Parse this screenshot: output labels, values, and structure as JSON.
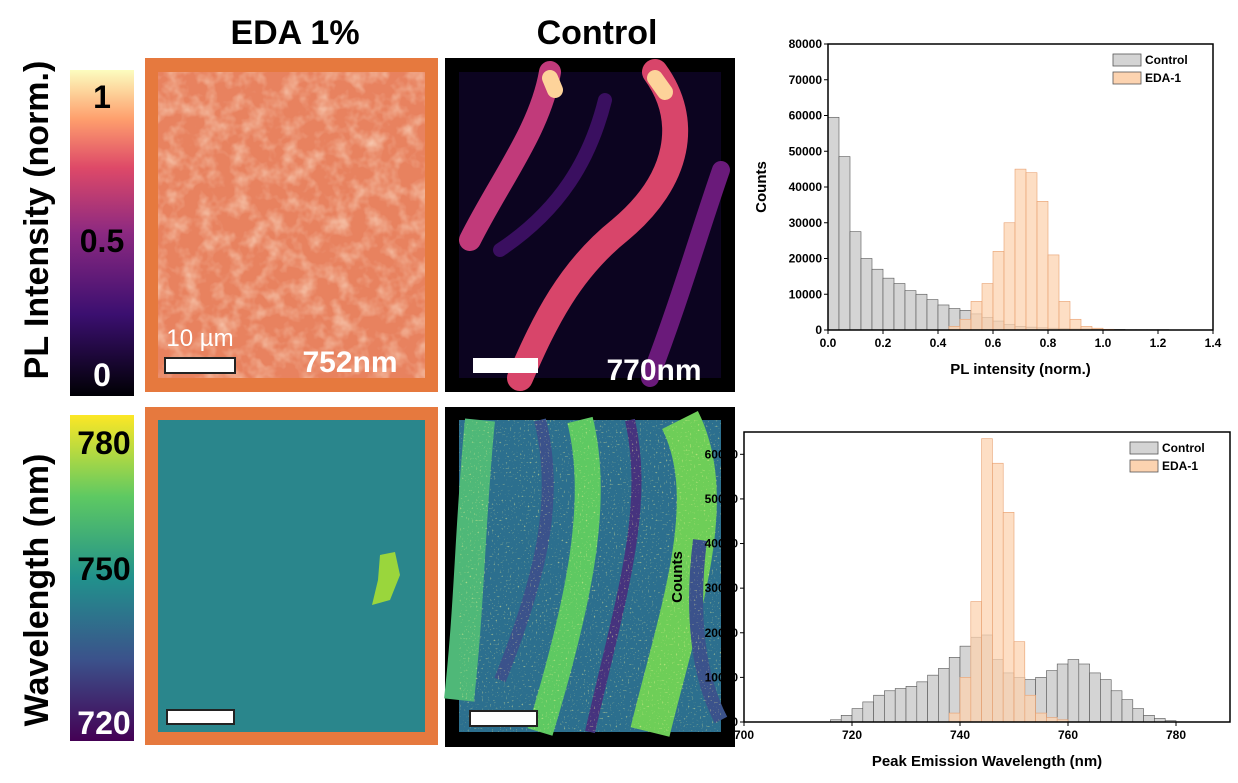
{
  "figure": {
    "columns": [
      "EDA 1%",
      "Control"
    ],
    "row_labels": [
      "PL Intensity (norm.)",
      "Wavelength (nm)"
    ],
    "colorbars": [
      {
        "ticks": [
          "1",
          "0.5",
          "0"
        ]
      },
      {
        "ticks": [
          "780",
          "750",
          "720"
        ]
      }
    ],
    "scale_bar": "10 µm",
    "peak_labels": [
      "752nm",
      "770nm"
    ]
  },
  "chart_data": [
    {
      "type": "histogram",
      "x_label": "PL intensity (norm.)",
      "y_label": "Counts",
      "bins": [
        0,
        0.04,
        0.08,
        0.12,
        0.16,
        0.2,
        0.24,
        0.28,
        0.32,
        0.36,
        0.4,
        0.44,
        0.48,
        0.52,
        0.56,
        0.6,
        0.64,
        0.68,
        0.72,
        0.76,
        0.8,
        0.84,
        0.88,
        0.92,
        0.96,
        1.0,
        1.04,
        1.08,
        1.12,
        1.16,
        1.2,
        1.24,
        1.28
      ],
      "series": [
        {
          "name": "Control",
          "color": "#d4d4d4",
          "values": [
            59500,
            48500,
            27500,
            20000,
            17000,
            14500,
            13000,
            11000,
            10000,
            8500,
            7000,
            6000,
            5500,
            4500,
            3500,
            2500,
            1500,
            1000,
            800,
            600,
            500,
            400,
            300,
            300,
            200,
            200,
            150,
            100,
            100,
            100,
            100,
            50
          ]
        },
        {
          "name": "EDA-1",
          "color": "#fcd3b0",
          "values": [
            0,
            0,
            0,
            0,
            0,
            0,
            0,
            0,
            0,
            0,
            0,
            1000,
            3000,
            8000,
            13000,
            22000,
            30000,
            45000,
            44000,
            36000,
            21000,
            8000,
            3000,
            1000,
            500,
            200,
            0,
            0,
            0,
            0,
            0,
            0
          ]
        }
      ],
      "xlim": [
        0,
        1.4
      ],
      "xticks": [
        {
          "value": 0,
          "label": "0.0"
        },
        0.2,
        0.4,
        0.6,
        0.8,
        {
          "value": 1,
          "label": "1.0"
        },
        1.2,
        1.4
      ],
      "ylim": [
        0,
        80000
      ],
      "yticks": [
        0,
        10000,
        20000,
        30000,
        40000,
        50000,
        60000,
        70000,
        80000
      ],
      "legend": "upper right"
    },
    {
      "type": "histogram",
      "x_label": "Peak Emission Wavelength (nm)",
      "y_label": "Counts",
      "bins": [
        716,
        718,
        720,
        722,
        724,
        726,
        728,
        730,
        732,
        734,
        736,
        738,
        740,
        742,
        744,
        746,
        748,
        750,
        752,
        754,
        756,
        758,
        760,
        762,
        764,
        766,
        768,
        770,
        772,
        774,
        776,
        778,
        780
      ],
      "series": [
        {
          "name": "Control",
          "color": "#d4d4d4",
          "values": [
            500,
            1500,
            3000,
            4500,
            6000,
            7000,
            7500,
            8000,
            9000,
            10500,
            12000,
            14500,
            17000,
            19000,
            19500,
            14000,
            11000,
            10000,
            9500,
            10000,
            11500,
            13000,
            14000,
            13000,
            11000,
            9500,
            7000,
            5000,
            3000,
            1500,
            800,
            300
          ]
        },
        {
          "name": "EDA-1",
          "color": "#fcd3b0",
          "values": [
            0,
            0,
            0,
            0,
            0,
            0,
            0,
            0,
            0,
            0,
            0,
            2000,
            10000,
            27000,
            63500,
            58000,
            47000,
            18000,
            6000,
            2000,
            1000,
            500,
            0,
            0,
            0,
            0,
            0,
            0,
            0,
            0,
            0,
            0
          ]
        }
      ],
      "xlim": [
        700,
        790
      ],
      "xticks": [
        700,
        720,
        740,
        760,
        780
      ],
      "ylim": [
        0,
        65000
      ],
      "yticks": [
        0,
        10000,
        20000,
        30000,
        40000,
        50000,
        60000
      ],
      "legend": "upper right"
    }
  ]
}
